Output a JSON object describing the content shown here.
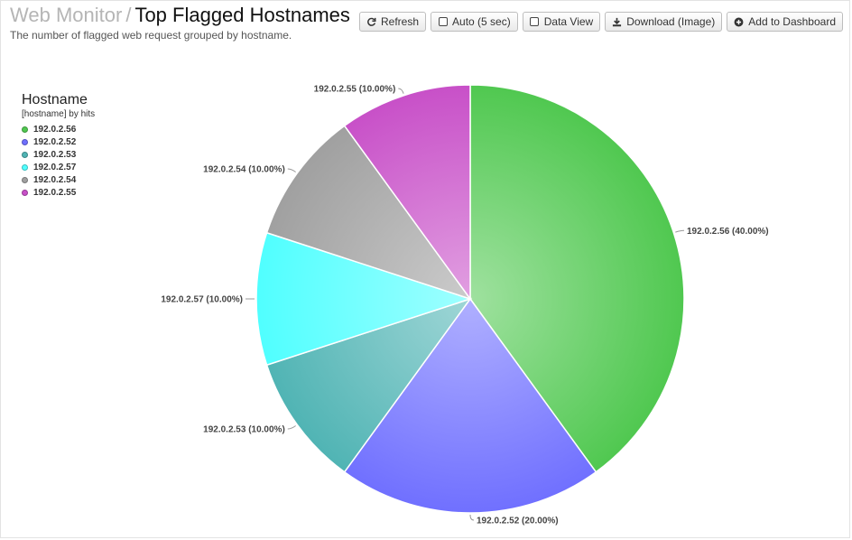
{
  "header": {
    "breadcrumb": "Web Monitor",
    "separator": "/",
    "title": "Top Flagged Hostnames",
    "subtitle": "The number of flagged web request grouped by hostname."
  },
  "toolbar": {
    "refresh_label": "Refresh",
    "auto_label": "Auto (5 sec)",
    "data_view_label": "Data View",
    "download_label": "Download (Image)",
    "add_dashboard_label": "Add to Dashboard"
  },
  "legend": {
    "title": "Hostname",
    "subtitle": "[hostname] by hits",
    "items": [
      {
        "label": "192.0.2.56",
        "color": "#50c850"
      },
      {
        "label": "192.0.2.52",
        "color": "#7070ff"
      },
      {
        "label": "192.0.2.53",
        "color": "#50b4b4"
      },
      {
        "label": "192.0.2.57",
        "color": "#50ffff"
      },
      {
        "label": "192.0.2.54",
        "color": "#a0a0a0"
      },
      {
        "label": "192.0.2.55",
        "color": "#c850c8"
      }
    ]
  },
  "chart_data": {
    "type": "pie",
    "title": "Top Flagged Hostnames",
    "categories": [
      "192.0.2.56",
      "192.0.2.52",
      "192.0.2.53",
      "192.0.2.57",
      "192.0.2.54",
      "192.0.2.55"
    ],
    "values": [
      40,
      20,
      10,
      10,
      10,
      10
    ],
    "labels": [
      "192.0.2.56 (40.00%)",
      "192.0.2.52 (20.00%)",
      "192.0.2.53 (10.00%)",
      "192.0.2.57 (10.00%)",
      "192.0.2.54 (10.00%)",
      "192.0.2.55 (10.00%)"
    ],
    "colors": [
      "#50c850",
      "#7070ff",
      "#50b4b4",
      "#50ffff",
      "#a0a0a0",
      "#c850c8"
    ],
    "legend_position": "left"
  }
}
